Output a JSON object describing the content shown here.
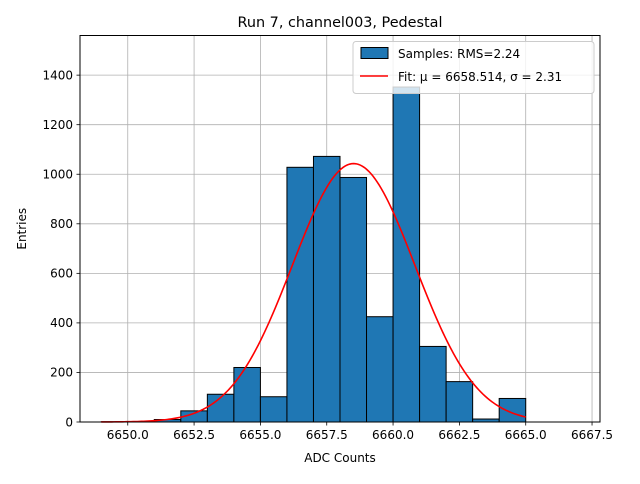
{
  "chart_data": {
    "type": "bar",
    "title": "Run 7, channel003, Pedestal",
    "xlabel": "ADC Counts",
    "ylabel": "Entries",
    "xlim": [
      6648.2,
      6667.8
    ],
    "ylim": [
      0,
      1560
    ],
    "grid": true,
    "legend_position": "top-right",
    "x_ticks": [
      6650.0,
      6652.5,
      6655.0,
      6657.5,
      6660.0,
      6662.5,
      6665.0,
      6667.5
    ],
    "x_tick_labels": [
      "6650.0",
      "6652.5",
      "6655.0",
      "6657.5",
      "6660.0",
      "6662.5",
      "6665.0",
      "6667.5"
    ],
    "y_ticks": [
      0,
      200,
      400,
      600,
      800,
      1000,
      1200,
      1400
    ],
    "y_tick_labels": [
      "0",
      "200",
      "400",
      "600",
      "800",
      "1000",
      "1200",
      "1400"
    ],
    "histogram": {
      "name": "Samples: RMS=2.24",
      "color": "#1f77b4",
      "edgecolor": "#000000",
      "bin_edges": [
        6649,
        6650,
        6651,
        6652,
        6653,
        6654,
        6655,
        6656,
        6657,
        6658,
        6659,
        6660,
        6661,
        6662,
        6663,
        6664,
        6665,
        6666
      ],
      "counts": [
        1,
        2,
        10,
        45,
        112,
        220,
        102,
        1028,
        1072,
        987,
        425,
        1352,
        305,
        163,
        12,
        95,
        0
      ]
    },
    "fit": {
      "name": "Fit: μ = 6658.514, σ = 2.31",
      "color": "#ff0000",
      "type": "gaussian",
      "mu": 6658.514,
      "sigma": 2.31,
      "amplitude": 1043,
      "x_range": [
        6649,
        6665
      ]
    }
  }
}
